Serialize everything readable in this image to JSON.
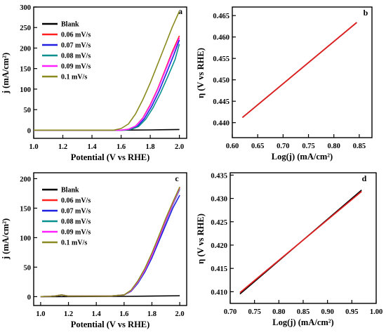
{
  "colors": {
    "blank": "#000000",
    "s006": "#ff2020",
    "s007": "#1f1fe0",
    "s008": "#0a8f8f",
    "s009": "#ff20ff",
    "s01": "#8a8a1e",
    "fit": "#e02020",
    "data": "#000000"
  },
  "chart_data": [
    {
      "panel": "a",
      "type": "line",
      "xlabel": "Potential (V vs RHE)",
      "ylabel": "j (mA/cm²)",
      "xlim": [
        1.0,
        2.05
      ],
      "ylim": [
        -20,
        300
      ],
      "xticks": [
        "1.0",
        "1.2",
        "1.4",
        "1.6",
        "1.8",
        "2.0"
      ],
      "yticks": [
        "0",
        "50",
        "100",
        "150",
        "200",
        "250",
        "300"
      ],
      "legend_position": "top-left",
      "series": [
        {
          "name": "Blank",
          "color_key": "blank",
          "x": [
            1.0,
            1.6,
            1.8,
            1.9,
            2.0
          ],
          "y": [
            0,
            0,
            0.5,
            1,
            1.5
          ]
        },
        {
          "name": "0.06 mV/s",
          "color_key": "s006",
          "x": [
            1.0,
            1.6,
            1.65,
            1.7,
            1.75,
            1.8,
            1.85,
            1.9,
            1.95,
            2.0
          ],
          "y": [
            0,
            0,
            2,
            10,
            30,
            62,
            100,
            145,
            190,
            230
          ]
        },
        {
          "name": "0.07 mV/s",
          "color_key": "s007",
          "x": [
            1.0,
            1.61,
            1.66,
            1.71,
            1.76,
            1.81,
            1.86,
            1.91,
            1.96,
            2.0
          ],
          "y": [
            0,
            0,
            2,
            9,
            28,
            58,
            95,
            138,
            182,
            220
          ]
        },
        {
          "name": "0.08 mV/s",
          "color_key": "s008",
          "x": [
            1.0,
            1.62,
            1.67,
            1.72,
            1.77,
            1.82,
            1.87,
            1.92,
            1.97,
            2.0
          ],
          "y": [
            0,
            0,
            2,
            9,
            27,
            55,
            90,
            130,
            172,
            210
          ]
        },
        {
          "name": "0.09 mV/s",
          "color_key": "s009",
          "x": [
            1.0,
            1.6,
            1.65,
            1.7,
            1.75,
            1.8,
            1.85,
            1.9,
            1.95,
            2.0
          ],
          "y": [
            0,
            0,
            2,
            10,
            29,
            60,
            98,
            142,
            186,
            225
          ]
        },
        {
          "name": "0.1 mV/s",
          "color_key": "s01",
          "x": [
            1.0,
            1.55,
            1.6,
            1.65,
            1.7,
            1.75,
            1.8,
            1.85,
            1.9,
            1.95,
            2.0
          ],
          "y": [
            0,
            0,
            4,
            15,
            40,
            75,
            115,
            160,
            205,
            250,
            290
          ]
        }
      ]
    },
    {
      "panel": "b",
      "type": "line",
      "xlabel": "Log(j) (mA/cm²)",
      "ylabel": "η (V vs RHE)",
      "xlim": [
        0.6,
        0.875
      ],
      "ylim": [
        0.4365,
        0.467
      ],
      "xticks": [
        "0.60",
        "0.65",
        "0.70",
        "0.75",
        "0.80",
        "0.85"
      ],
      "yticks": [
        "0.440",
        "0.445",
        "0.450",
        "0.455",
        "0.460",
        "0.465"
      ],
      "series": [
        {
          "color_key": "data",
          "x": [
            0.62,
            0.845
          ],
          "y": [
            0.4412,
            0.4634
          ]
        },
        {
          "color_key": "fit",
          "x": [
            0.62,
            0.845
          ],
          "y": [
            0.4412,
            0.4634
          ]
        }
      ]
    },
    {
      "panel": "c",
      "type": "line",
      "xlabel": "Potential (V vs RHE)",
      "ylabel": "j (mA/cm²)",
      "xlim": [
        0.95,
        2.05
      ],
      "ylim": [
        -15,
        210
      ],
      "xticks": [
        "1.0",
        "1.2",
        "1.4",
        "1.6",
        "1.8",
        "2.0"
      ],
      "yticks": [
        "0",
        "50",
        "100",
        "150",
        "200"
      ],
      "legend_position": "top-left",
      "series": [
        {
          "name": "Blank",
          "color_key": "blank",
          "x": [
            1.0,
            1.6,
            1.8,
            2.0
          ],
          "y": [
            0,
            0.5,
            1,
            1.5
          ]
        },
        {
          "name": "0.06 mV/s",
          "color_key": "s006",
          "x": [
            1.0,
            1.1,
            1.15,
            1.2,
            1.5,
            1.6,
            1.65,
            1.7,
            1.75,
            1.8,
            1.85,
            1.9,
            1.95,
            2.0
          ],
          "y": [
            0,
            1,
            3,
            1,
            1,
            3,
            10,
            25,
            45,
            70,
            100,
            130,
            158,
            185
          ]
        },
        {
          "name": "0.07 mV/s",
          "color_key": "s007",
          "x": [
            1.0,
            1.1,
            1.15,
            1.2,
            1.5,
            1.6,
            1.65,
            1.7,
            1.75,
            1.8,
            1.85,
            1.9,
            1.95,
            2.0
          ],
          "y": [
            0,
            1,
            3,
            1,
            1,
            3,
            9,
            23,
            42,
            66,
            94,
            122,
            150,
            172
          ]
        },
        {
          "name": "0.08 mV/s",
          "color_key": "s008",
          "x": [
            1.0,
            1.1,
            1.15,
            1.2,
            1.5,
            1.6,
            1.65,
            1.7,
            1.75,
            1.8,
            1.85,
            1.9,
            1.95,
            2.0
          ],
          "y": [
            0,
            1,
            3,
            1,
            1,
            3,
            10,
            24,
            44,
            69,
            98,
            128,
            156,
            182
          ]
        },
        {
          "name": "0.09 mV/s",
          "color_key": "s009",
          "x": [
            1.0,
            1.1,
            1.15,
            1.2,
            1.5,
            1.6,
            1.65,
            1.7,
            1.75,
            1.8,
            1.85,
            1.9,
            1.95,
            2.0
          ],
          "y": [
            0,
            1,
            3,
            1,
            1,
            3,
            10,
            25,
            45,
            70,
            99,
            129,
            157,
            184
          ]
        },
        {
          "name": "0.1 mV/s",
          "color_key": "s01",
          "x": [
            1.0,
            1.1,
            1.15,
            1.2,
            1.5,
            1.6,
            1.65,
            1.7,
            1.75,
            1.8,
            1.85,
            1.9,
            1.95,
            2.0
          ],
          "y": [
            0,
            1,
            3,
            1,
            1,
            3,
            11,
            27,
            48,
            74,
            103,
            133,
            160,
            186
          ]
        }
      ]
    },
    {
      "panel": "d",
      "type": "line",
      "xlabel": "Log(j) (mA/cm²)",
      "ylabel": "η (V vs RHE)",
      "xlim": [
        0.7,
        1.0
      ],
      "ylim": [
        0.4075,
        0.4355
      ],
      "xticks": [
        "0.70",
        "0.75",
        "0.80",
        "0.85",
        "0.90",
        "0.95",
        "1.00"
      ],
      "yticks": [
        "0.410",
        "0.415",
        "0.420",
        "0.425",
        "0.430",
        "0.435"
      ],
      "series": [
        {
          "color_key": "data",
          "x": [
            0.72,
            0.97
          ],
          "y": [
            0.4095,
            0.4318
          ]
        },
        {
          "color_key": "fit",
          "x": [
            0.72,
            0.97
          ],
          "y": [
            0.4098,
            0.4315
          ]
        }
      ]
    }
  ]
}
